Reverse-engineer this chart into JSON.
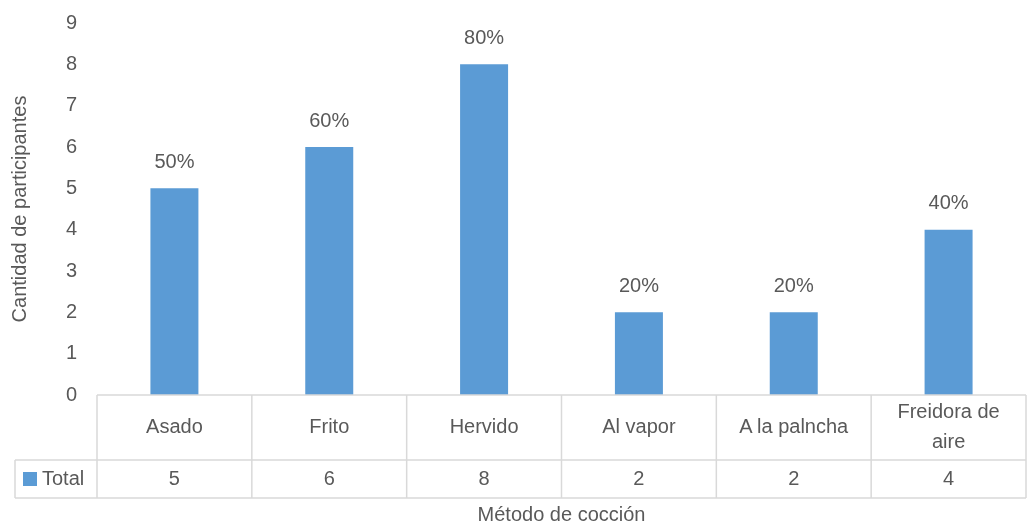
{
  "chart_data": {
    "type": "bar",
    "xlabel": "Método de cocción",
    "ylabel": "Cantidad de participantes",
    "categories": [
      "Asado",
      "Frito",
      "Hervido",
      "Al vapor",
      "A la palncha",
      "Freidora de aire"
    ],
    "series": [
      {
        "name": "Total",
        "color": "#5b9bd5",
        "values": [
          5,
          6,
          8,
          2,
          2,
          4
        ]
      }
    ],
    "annotations": [
      {
        "text": "50%",
        "x": "Asado",
        "y": 5
      },
      {
        "text": "60%",
        "x": "Frito",
        "y": 6
      },
      {
        "text": "80%",
        "x": "Hervido",
        "y": 8
      },
      {
        "text": "20%",
        "x": "Al vapor",
        "y": 2
      },
      {
        "text": "20%",
        "x": "A la palncha",
        "y": 2
      },
      {
        "text": "40%",
        "x": "Freidora de aire",
        "y": 4
      }
    ],
    "ylim": [
      0,
      9
    ],
    "yticks": [
      0,
      1,
      2,
      3,
      4,
      5,
      6,
      7,
      8,
      9
    ],
    "data_labels": true,
    "legend": "bottom"
  }
}
